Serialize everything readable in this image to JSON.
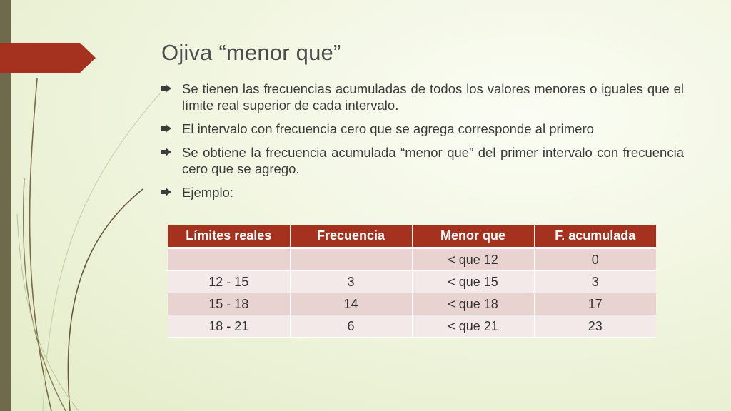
{
  "slide": {
    "title": "Ojiva “menor que”",
    "bullets": [
      "Se tienen las frecuencias acumuladas de todos los valores menores o iguales que el límite real superior de cada intervalo.",
      "El intervalo con frecuencia cero que se agrega corresponde al primero",
      "Se obtiene la frecuencia acumulada “menor que” del primer intervalo con frecuencia cero que se agrego.",
      "Ejemplo:"
    ]
  },
  "table": {
    "headers": [
      "Límites reales",
      "Frecuencia",
      "Menor  que",
      "F. acumulada"
    ],
    "rows": [
      [
        "",
        "",
        "< que 12",
        "0"
      ],
      [
        "12  -  15",
        "3",
        "< que 15",
        "3"
      ],
      [
        "15  -  18",
        "14",
        "< que 18",
        "17"
      ],
      [
        "18  -  21",
        "6",
        "< que 21",
        "23"
      ]
    ]
  },
  "colors": {
    "accent": "#a5321e",
    "left_bar": "#6f6a4c",
    "row_dark": "#e8d3d1",
    "row_light": "#f2e9e8"
  }
}
